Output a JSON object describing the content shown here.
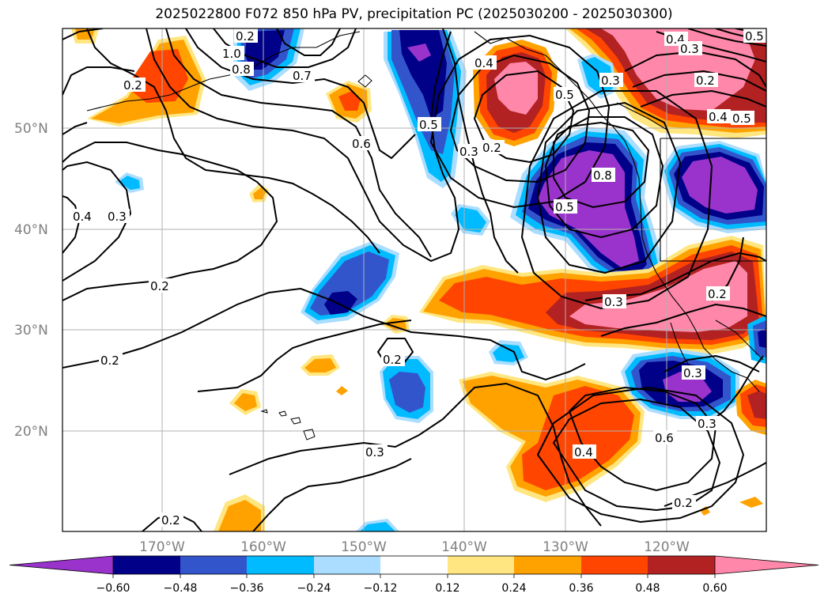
{
  "title": "2025022800 F072 850 hPa PV, precipitation PC (2025030200 - 2025030300)",
  "lat_labels": [
    "50°N",
    "40°N",
    "30°N",
    "20°N"
  ],
  "lon_labels": [
    "170°W",
    "160°W",
    "150°W",
    "140°W",
    "130°W",
    "120°W"
  ],
  "contour_labels": [
    "1.0",
    "0.8",
    "0.7",
    "0.6",
    "0.5",
    "0.4",
    "0.3",
    "0.2",
    "0.2",
    "0.4",
    "0.3",
    "0.2",
    "0.2",
    "0.2",
    "0.2",
    "0.3",
    "0.5",
    "0.3",
    "0.8",
    "0.5",
    "0.4",
    "0.3",
    "0.2",
    "0.4",
    "0.5",
    "0.3",
    "0.3",
    "0.2",
    "0.3",
    "0.6",
    "0.4",
    "0.2",
    "0.5",
    "0.2"
  ],
  "colorbar": {
    "ticks": [
      "−0.60",
      "−0.48",
      "−0.36",
      "−0.24",
      "−0.12",
      "0.12",
      "0.24",
      "0.36",
      "0.48",
      "0.60"
    ],
    "colors": [
      "#9933cc",
      "#000088",
      "#3355cc",
      "#00bbff",
      "#aaddff",
      "#ffffff",
      "#ffe680",
      "#ffa200",
      "#ff4500",
      "#b22222",
      "#ff88aa"
    ]
  }
}
